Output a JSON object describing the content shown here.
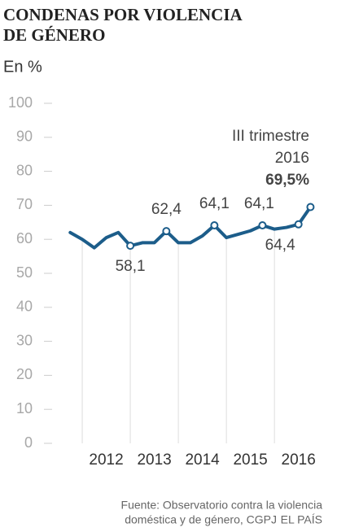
{
  "chart_data": {
    "type": "line",
    "title": [
      "CONDENAS POR VIOLENCIA",
      "DE GÉNERO"
    ],
    "subtitle": "En %",
    "annotation": [
      "III trimestre",
      "2016"
    ],
    "source": [
      "Fuente: Observatorio contra la violencia",
      "doméstica y de género, CGPJ"
    ],
    "credit": "EL PAÍS",
    "x": [
      2011.75,
      2012,
      2012.25,
      2012.5,
      2012.75,
      2013,
      2013.25,
      2013.5,
      2013.75,
      2014,
      2014.25,
      2014.5,
      2014.75,
      2015,
      2015.25,
      2015.5,
      2015.75,
      2016,
      2016.25,
      2016.5,
      2016.75
    ],
    "series": [
      {
        "color": "#1c5d8a",
        "values": [
          62,
          60,
          57.5,
          60.5,
          62,
          58.1,
          59,
          59,
          62.4,
          59,
          59,
          61,
          64.1,
          60.5,
          61.5,
          62.5,
          64.1,
          63,
          63.5,
          64.4,
          69.5
        ],
        "value_labels": [
          null,
          null,
          null,
          null,
          null,
          "58,1",
          null,
          null,
          "62,4",
          null,
          null,
          null,
          "64,1",
          null,
          null,
          null,
          "64,1",
          null,
          null,
          "64,4",
          "69,5%"
        ]
      }
    ],
    "xlim": [
      2011.22,
      2016.98
    ],
    "xticks": [
      {
        "value": 2012.5,
        "label": "2012"
      },
      {
        "value": 2013.5,
        "label": "2013"
      },
      {
        "value": 2014.5,
        "label": "2014"
      },
      {
        "value": 2015.5,
        "label": "2015"
      },
      {
        "value": 2016.5,
        "label": "2016"
      }
    ],
    "ylim": [
      0,
      100
    ],
    "yticks": [
      0,
      10,
      20,
      30,
      40,
      50,
      60,
      70,
      80,
      90,
      100
    ],
    "grid": true
  }
}
